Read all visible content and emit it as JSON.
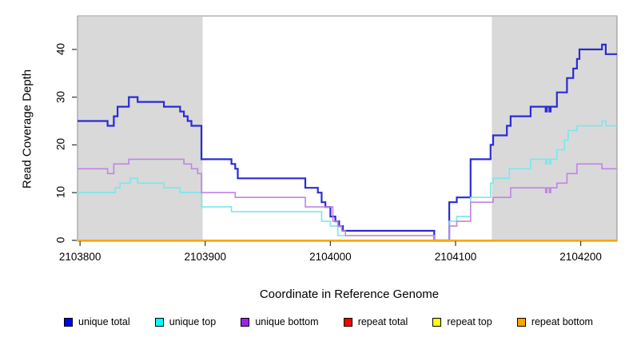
{
  "axes": {
    "x_title": "Coordinate in Reference Genome",
    "y_title": "Read Coverage Depth"
  },
  "chart_data": {
    "type": "line",
    "step": true,
    "title": "",
    "xlabel": "Coordinate in Reference Genome",
    "ylabel": "Read Coverage Depth",
    "xlim": [
      2103798,
      2104229
    ],
    "ylim": [
      0,
      47
    ],
    "xticks": [
      2103800,
      2103900,
      2104000,
      2104100,
      2104200
    ],
    "yticks": [
      0,
      10,
      20,
      30,
      40
    ],
    "grid": false,
    "legend_position": "bottom",
    "background_color": "#ffffff",
    "box_color": "#8e8e8e",
    "axis_color": "#333333",
    "shaded_regions": [
      {
        "x0": 2103798,
        "x1": 2103898,
        "color": "#d9d9d9"
      },
      {
        "x0": 2104129,
        "x1": 2104229,
        "color": "#d9d9d9"
      }
    ],
    "series": [
      {
        "name": "unique total",
        "legend_color": "#0000ff",
        "line_color": "#2b2bd5",
        "width": 2.2,
        "points": [
          [
            2103798,
            25
          ],
          [
            2103822,
            24
          ],
          [
            2103827,
            26
          ],
          [
            2103830,
            28
          ],
          [
            2103839,
            30
          ],
          [
            2103846,
            29
          ],
          [
            2103867,
            28
          ],
          [
            2103880,
            27
          ],
          [
            2103883,
            26
          ],
          [
            2103886,
            25
          ],
          [
            2103889,
            24
          ],
          [
            2103897,
            17
          ],
          [
            2103921,
            16
          ],
          [
            2103924,
            15
          ],
          [
            2103926,
            13
          ],
          [
            2103980,
            11
          ],
          [
            2103990,
            10
          ],
          [
            2103993,
            8
          ],
          [
            2103996,
            7
          ],
          [
            2104000,
            5
          ],
          [
            2104004,
            4
          ],
          [
            2104007,
            3
          ],
          [
            2104010,
            2
          ],
          [
            2104083,
            0
          ],
          [
            2104095,
            8
          ],
          [
            2104101,
            9
          ],
          [
            2104112,
            17
          ],
          [
            2104128,
            20
          ],
          [
            2104130,
            22
          ],
          [
            2104141,
            24
          ],
          [
            2104144,
            26
          ],
          [
            2104160,
            28
          ],
          [
            2104172,
            27
          ],
          [
            2104173,
            28
          ],
          [
            2104175,
            27
          ],
          [
            2104176,
            28
          ],
          [
            2104181,
            31
          ],
          [
            2104189,
            34
          ],
          [
            2104194,
            36
          ],
          [
            2104197,
            38
          ],
          [
            2104199,
            40
          ],
          [
            2104217,
            41
          ],
          [
            2104220,
            39
          ]
        ]
      },
      {
        "name": "unique top",
        "legend_color": "#00ffff",
        "line_color": "#79e8ee",
        "width": 1.6,
        "points": [
          [
            2103798,
            10
          ],
          [
            2103828,
            11
          ],
          [
            2103832,
            12
          ],
          [
            2103840,
            13
          ],
          [
            2103846,
            12
          ],
          [
            2103867,
            11
          ],
          [
            2103880,
            10
          ],
          [
            2103897,
            7
          ],
          [
            2103921,
            6
          ],
          [
            2103993,
            4
          ],
          [
            2104000,
            3
          ],
          [
            2104006,
            1
          ],
          [
            2104083,
            0
          ],
          [
            2104095,
            4
          ],
          [
            2104101,
            5
          ],
          [
            2104112,
            9
          ],
          [
            2104128,
            12
          ],
          [
            2104130,
            13
          ],
          [
            2104143,
            15
          ],
          [
            2104160,
            17
          ],
          [
            2104172,
            16
          ],
          [
            2104173,
            17
          ],
          [
            2104175,
            16
          ],
          [
            2104176,
            17
          ],
          [
            2104181,
            19
          ],
          [
            2104187,
            21
          ],
          [
            2104190,
            23
          ],
          [
            2104197,
            24
          ],
          [
            2104217,
            25
          ],
          [
            2104220,
            24
          ]
        ]
      },
      {
        "name": "unique bottom",
        "legend_color": "#a020f0",
        "line_color": "#c184e4",
        "width": 1.6,
        "points": [
          [
            2103798,
            15
          ],
          [
            2103822,
            14
          ],
          [
            2103827,
            16
          ],
          [
            2103839,
            17
          ],
          [
            2103883,
            16
          ],
          [
            2103889,
            15
          ],
          [
            2103894,
            14
          ],
          [
            2103897,
            10
          ],
          [
            2103924,
            9
          ],
          [
            2103980,
            7
          ],
          [
            2104002,
            4
          ],
          [
            2104006,
            3
          ],
          [
            2104009,
            2
          ],
          [
            2104012,
            1
          ],
          [
            2104083,
            0
          ],
          [
            2104095,
            3
          ],
          [
            2104101,
            4
          ],
          [
            2104112,
            8
          ],
          [
            2104130,
            9
          ],
          [
            2104144,
            11
          ],
          [
            2104172,
            10
          ],
          [
            2104173,
            11
          ],
          [
            2104175,
            10
          ],
          [
            2104176,
            11
          ],
          [
            2104181,
            12
          ],
          [
            2104189,
            14
          ],
          [
            2104197,
            16
          ],
          [
            2104217,
            15
          ]
        ]
      },
      {
        "name": "repeat total",
        "legend_color": "#ff0000",
        "line_color": "#ff0000",
        "width": 1.6,
        "points": [
          [
            2103798,
            0
          ]
        ]
      },
      {
        "name": "repeat top",
        "legend_color": "#ffff00",
        "line_color": "#ffff00",
        "width": 1.6,
        "points": [
          [
            2103798,
            0
          ]
        ]
      },
      {
        "name": "repeat bottom",
        "legend_color": "#ffa500",
        "line_color": "#ffa500",
        "width": 1.8,
        "points": [
          [
            2103798,
            0
          ]
        ]
      }
    ]
  }
}
